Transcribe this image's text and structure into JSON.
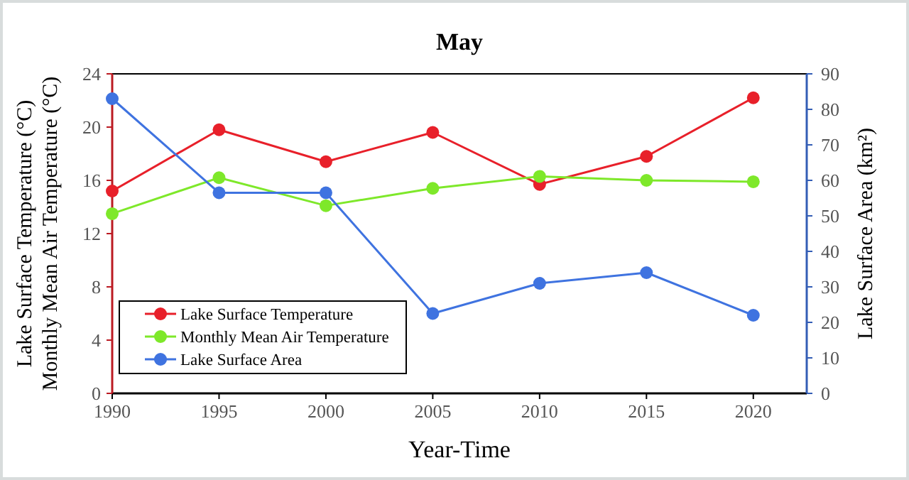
{
  "chart_data": {
    "type": "line",
    "title": "May",
    "xlabel": "Year-Time",
    "ylabel": "Lake Surface Temperature (°C)\nMonthly Mean Air Temperature (°C)",
    "y2label": "Lake Surface Area (km²)",
    "x": [
      1990,
      1995,
      2000,
      2005,
      2010,
      2015,
      2020
    ],
    "series": [
      {
        "name": "Lake Surface Temperature",
        "color": "#e8202a",
        "values": [
          15.2,
          19.8,
          17.4,
          19.6,
          15.7,
          17.8,
          22.2
        ]
      },
      {
        "name": "Monthly Mean Air Temperature",
        "color": "#7ee82a",
        "values": [
          13.5,
          16.2,
          14.1,
          15.4,
          16.3,
          16.0,
          15.9
        ]
      },
      {
        "name": "Lake Surface Area",
        "color": "#3f73e0",
        "axis": "y2",
        "values": [
          83,
          56.5,
          56.5,
          22.5,
          31,
          34,
          22
        ]
      }
    ],
    "xlim": [
      1990,
      2022.5
    ],
    "xticks": [
      1990,
      1995,
      2000,
      2005,
      2010,
      2015,
      2020
    ],
    "ylim": [
      0,
      24
    ],
    "yticks": [
      0,
      4,
      8,
      12,
      16,
      20,
      24
    ],
    "y2lim": [
      0,
      90
    ],
    "y2ticks": [
      0,
      10,
      20,
      30,
      40,
      50,
      60,
      70,
      80,
      90
    ],
    "marker": "circle",
    "line_style": "solid",
    "grid": false,
    "legend": "bottom left"
  }
}
